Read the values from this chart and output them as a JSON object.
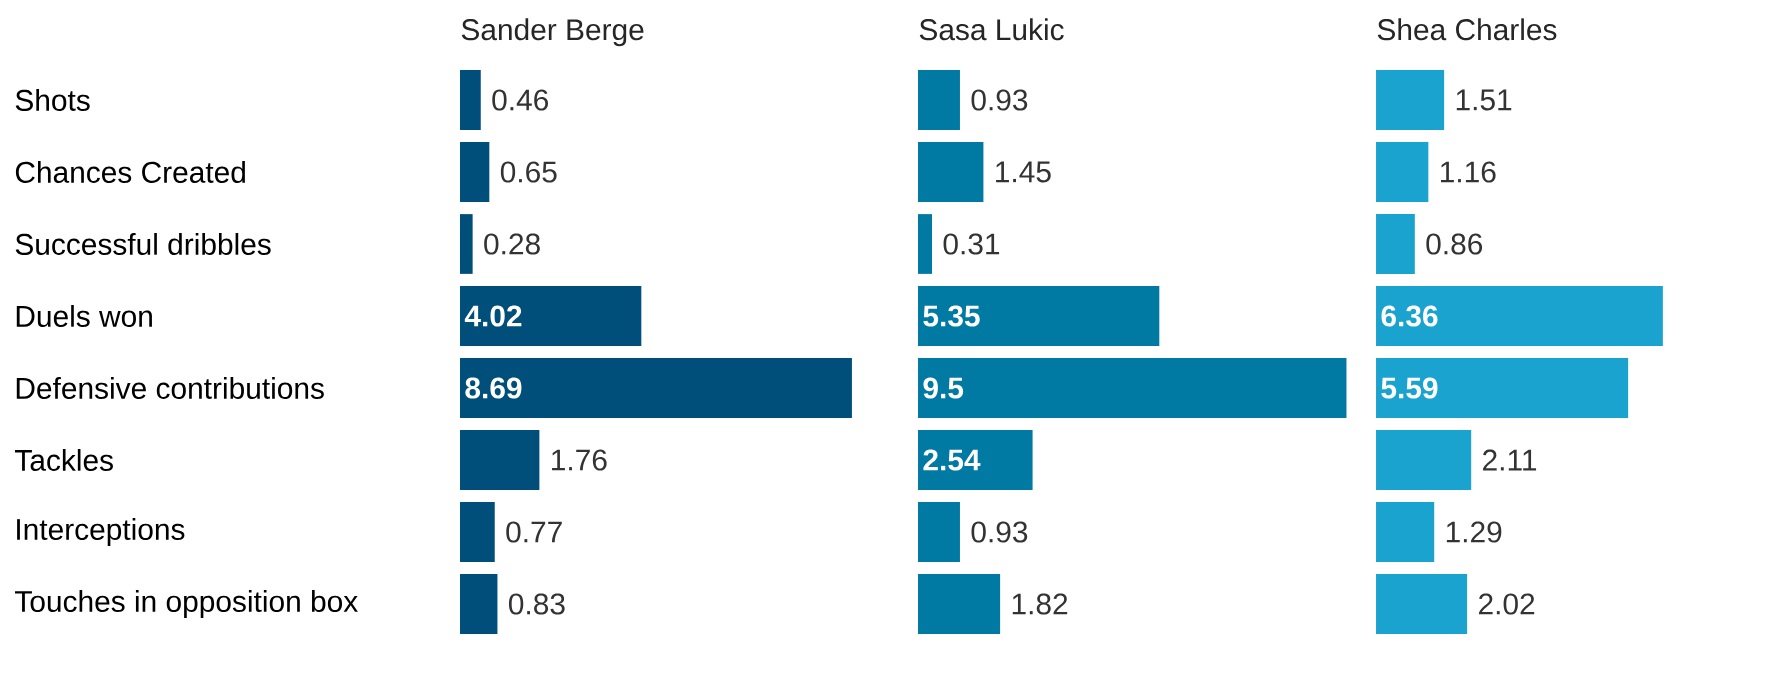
{
  "chart_data": [
    {
      "type": "bar",
      "orientation": "horizontal",
      "title": "Sander Berge",
      "categories": [
        "Shots",
        "Chances Created",
        "Successful dribbles",
        "Duels won",
        "Defensive contributions",
        "Tackles",
        "Interceptions",
        "Touches in opposition box"
      ],
      "values": [
        0.46,
        0.65,
        0.28,
        4.02,
        8.69,
        1.76,
        0.77,
        0.83
      ],
      "color": "#004f7a",
      "data_labels": true,
      "tick_labels": "y"
    },
    {
      "type": "bar",
      "orientation": "horizontal",
      "title": "Sasa Lukic",
      "values": [
        0.93,
        1.45,
        0.31,
        5.35,
        9.5,
        2.54,
        0.93,
        1.82
      ],
      "color": "#0079a3",
      "data_labels": true,
      "tick_labels": false
    },
    {
      "type": "bar",
      "orientation": "horizontal",
      "title": "Shea Charles",
      "values": [
        1.51,
        1.16,
        0.86,
        6.36,
        5.59,
        2.11,
        1.29,
        2.02
      ],
      "color": "#1ba3cf",
      "data_labels": true,
      "tick_labels": false
    }
  ]
}
